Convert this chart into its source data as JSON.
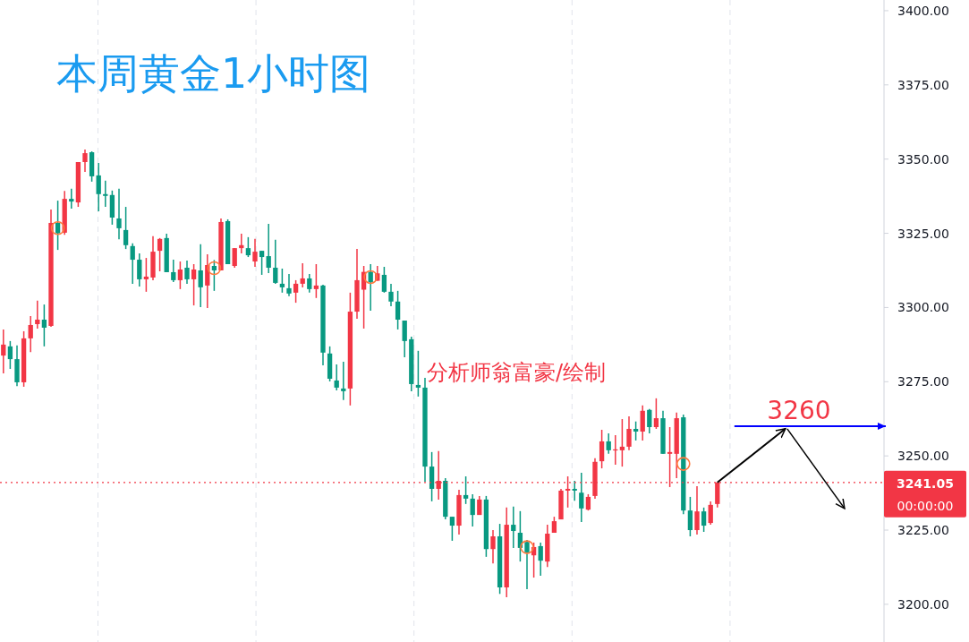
{
  "chart_data": {
    "type": "candlestick",
    "title": "本周黄金1小时图",
    "annotations": [
      "分析师翁富豪/绘制",
      "00:00:00"
    ],
    "categories": [
      null,
      null,
      null,
      null,
      null,
      null,
      null,
      null,
      null,
      null,
      null,
      null,
      null,
      null,
      null,
      null,
      null,
      null,
      null,
      null,
      null,
      null,
      null,
      null,
      null,
      null,
      null,
      null,
      null,
      null,
      null,
      null,
      null,
      null,
      null,
      null,
      null,
      null,
      null,
      null,
      null,
      null,
      null,
      null,
      null,
      null,
      null,
      null,
      null,
      null,
      null,
      null,
      null,
      null,
      null,
      null,
      null,
      null,
      null,
      null,
      null,
      null,
      null,
      null,
      null,
      null,
      null,
      null,
      null,
      null,
      null,
      null,
      null,
      null,
      null,
      null,
      null,
      null,
      null,
      null,
      null,
      null,
      null,
      null,
      null,
      null,
      null,
      null,
      null,
      null,
      null,
      null,
      null,
      null,
      null,
      null,
      null,
      null,
      null,
      null,
      null,
      null,
      null,
      null,
      null,
      null,
      null,
      null,
      null,
      null,
      null,
      null,
      null,
      null,
      null,
      null,
      null,
      null,
      null,
      null,
      null,
      null,
      null,
      null,
      null,
      null,
      null,
      null,
      null,
      null
    ],
    "ohlc": [
      [
        3283.8,
        3292.6,
        3277.8,
        3287.5
      ],
      [
        3286.9,
        3288.7,
        3279.3,
        3282.6
      ],
      [
        3282.6,
        3287.2,
        3273.5,
        3274.8
      ],
      [
        3274.8,
        3292.0,
        3273.3,
        3289.6
      ],
      [
        3289.6,
        3297.1,
        3285.0,
        3294.1
      ],
      [
        3294.4,
        3302.3,
        3292.9,
        3295.9
      ],
      [
        3295.9,
        3301.0,
        3286.9,
        3293.2
      ],
      [
        3293.8,
        3333.0,
        3293.5,
        3328.5
      ],
      [
        3328.5,
        3336.0,
        3319.4,
        3325.0
      ],
      [
        3325.2,
        3339.3,
        3324.5,
        3336.6
      ],
      [
        3336.6,
        3340.0,
        3333.3,
        3335.7
      ],
      [
        3335.4,
        3349.0,
        3333.9,
        3349.0
      ],
      [
        3349.0,
        3353.2,
        3345.7,
        3352.0
      ],
      [
        3352.3,
        3352.6,
        3342.4,
        3344.2
      ],
      [
        3344.5,
        3348.7,
        3332.4,
        3338.2
      ],
      [
        3338.2,
        3342.7,
        3333.9,
        3337.6
      ],
      [
        3337.9,
        3339.4,
        3327.9,
        3330.3
      ],
      [
        3330.0,
        3340.0,
        3323.0,
        3326.7
      ],
      [
        3326.1,
        3333.9,
        3319.7,
        3321.0
      ],
      [
        3320.7,
        3321.6,
        3308.0,
        3316.1
      ],
      [
        3316.1,
        3318.2,
        3307.1,
        3309.5
      ],
      [
        3309.5,
        3316.7,
        3305.3,
        3310.4
      ],
      [
        3310.1,
        3324.0,
        3309.2,
        3318.8
      ],
      [
        3319.1,
        3323.4,
        3312.2,
        3323.1
      ],
      [
        3323.4,
        3324.9,
        3311.9,
        3311.9
      ],
      [
        3311.9,
        3316.1,
        3308.6,
        3309.2
      ],
      [
        3309.2,
        3315.5,
        3306.2,
        3312.8
      ],
      [
        3313.4,
        3315.8,
        3308.0,
        3309.5
      ],
      [
        3309.5,
        3314.6,
        3300.7,
        3312.8
      ],
      [
        3312.5,
        3321.3,
        3300.1,
        3306.8
      ],
      [
        3307.4,
        3317.9,
        3299.8,
        3314.3
      ],
      [
        3314.0,
        3316.0,
        3305.6,
        3312.5
      ],
      [
        3312.5,
        3330.0,
        3312.5,
        3328.8
      ],
      [
        3329.1,
        3329.7,
        3314.6,
        3314.6
      ],
      [
        3314.0,
        3320.0,
        3313.4,
        3320.0
      ],
      [
        3320.0,
        3324.9,
        3318.2,
        3321.0
      ],
      [
        3320.0,
        3323.7,
        3317.0,
        3317.6
      ],
      [
        3315.5,
        3323.1,
        3313.7,
        3318.8
      ],
      [
        3319.1,
        3319.1,
        3311.0,
        3317.0
      ],
      [
        3317.3,
        3328.2,
        3311.6,
        3313.4
      ],
      [
        3313.4,
        3322.8,
        3308.0,
        3308.3
      ],
      [
        3308.0,
        3313.1,
        3305.0,
        3306.8
      ],
      [
        3306.5,
        3311.3,
        3303.8,
        3304.7
      ],
      [
        3305.0,
        3309.2,
        3301.6,
        3308.0
      ],
      [
        3308.0,
        3314.9,
        3306.8,
        3309.8
      ],
      [
        3309.8,
        3311.3,
        3305.0,
        3306.2
      ],
      [
        3306.2,
        3314.6,
        3303.2,
        3307.4
      ],
      [
        3307.4,
        3307.7,
        3280.5,
        3284.8
      ],
      [
        3284.5,
        3286.9,
        3275.1,
        3276.0
      ],
      [
        3275.4,
        3280.8,
        3272.1,
        3273.0
      ],
      [
        3272.7,
        3281.7,
        3268.8,
        3271.8
      ],
      [
        3272.7,
        3305.0,
        3267.0,
        3298.6
      ],
      [
        3298.6,
        3319.7,
        3296.2,
        3309.2
      ],
      [
        3306.0,
        3314.0,
        3292.9,
        3312.0
      ],
      [
        3312.0,
        3314.6,
        3298.9,
        3308.5
      ],
      [
        3309.0,
        3314.0,
        3309.0,
        3311.5
      ],
      [
        3311.0,
        3313.7,
        3305.0,
        3305.3
      ],
      [
        3305.3,
        3308.0,
        3300.4,
        3302.0
      ],
      [
        3302.0,
        3305.6,
        3292.6,
        3295.9
      ],
      [
        3295.6,
        3295.6,
        3283.2,
        3288.7
      ],
      [
        3289.3,
        3290.2,
        3271.8,
        3274.2
      ],
      [
        3273.9,
        3285.4,
        3270.0,
        3273.0
      ],
      [
        3273.0,
        3276.3,
        3241.3,
        3246.4
      ],
      [
        3246.4,
        3251.3,
        3234.7,
        3238.9
      ],
      [
        3238.9,
        3251.6,
        3235.3,
        3241.6
      ],
      [
        3241.6,
        3242.5,
        3228.6,
        3229.5
      ],
      [
        3229.5,
        3229.5,
        3221.4,
        3226.5
      ],
      [
        3226.5,
        3238.6,
        3223.5,
        3236.8
      ],
      [
        3236.8,
        3243.1,
        3233.8,
        3235.6
      ],
      [
        3235.6,
        3237.1,
        3226.2,
        3230.1
      ],
      [
        3230.1,
        3236.5,
        3230.1,
        3235.3
      ],
      [
        3235.3,
        3236.5,
        3216.0,
        3218.6
      ],
      [
        3218.6,
        3225.0,
        3213.8,
        3222.9
      ],
      [
        3222.9,
        3227.1,
        3203.5,
        3205.7
      ],
      [
        3205.7,
        3232.6,
        3202.4,
        3226.8
      ],
      [
        3226.8,
        3232.9,
        3219.0,
        3224.7
      ],
      [
        3224.1,
        3231.4,
        3214.4,
        3219.0
      ],
      [
        3221.0,
        3221.7,
        3205.1,
        3217.5
      ],
      [
        3216.5,
        3220.8,
        3209.0,
        3219.3
      ],
      [
        3219.6,
        3220.8,
        3209.6,
        3214.7
      ],
      [
        3214.4,
        3226.8,
        3212.6,
        3223.8
      ],
      [
        3224.1,
        3229.5,
        3224.1,
        3228.0
      ],
      [
        3228.6,
        3238.9,
        3228.6,
        3238.3
      ],
      [
        3238.3,
        3243.1,
        3232.6,
        3238.9
      ],
      [
        3238.9,
        3241.6,
        3234.9,
        3238.3
      ],
      [
        3237.6,
        3244.3,
        3227.7,
        3232.3
      ],
      [
        3231.9,
        3237.1,
        3231.6,
        3236.2
      ],
      [
        3236.5,
        3249.2,
        3235.6,
        3248.0
      ],
      [
        3248.2,
        3258.8,
        3245.8,
        3254.9
      ],
      [
        3254.9,
        3257.6,
        3250.7,
        3251.9
      ],
      [
        3251.9,
        3257.0,
        3247.0,
        3252.2
      ],
      [
        3251.9,
        3262.4,
        3246.4,
        3253.1
      ],
      [
        3253.1,
        3263.3,
        3251.9,
        3259.1
      ],
      [
        3259.1,
        3261.6,
        3255.2,
        3258.2
      ],
      [
        3258.2,
        3267.0,
        3255.2,
        3265.2
      ],
      [
        3265.5,
        3265.8,
        3257.6,
        3259.7
      ],
      [
        3259.7,
        3269.4,
        3259.1,
        3262.7
      ],
      [
        3262.7,
        3265.2,
        3250.7,
        3250.7
      ],
      [
        3250.7,
        3259.7,
        3239.5,
        3251.3
      ],
      [
        3250.7,
        3264.6,
        3242.5,
        3262.7
      ],
      [
        3263.0,
        3263.9,
        3230.4,
        3231.6
      ],
      [
        3231.6,
        3236.2,
        3222.9,
        3225.0
      ],
      [
        3225.0,
        3239.8,
        3223.5,
        3231.3
      ],
      [
        3231.3,
        3232.6,
        3224.4,
        3226.5
      ],
      [
        3227.4,
        3234.7,
        3226.8,
        3233.5
      ],
      [
        3233.8,
        3241.05,
        3232.6,
        3241.05
      ],
      null,
      null,
      null,
      null,
      null,
      null,
      null,
      null,
      null,
      null,
      null,
      null,
      null,
      null,
      null,
      null,
      null,
      null,
      null,
      null,
      null,
      null,
      null,
      null
    ],
    "colors": [
      "#f23645",
      "#089981",
      "#089981",
      "#f23645",
      "#f23645",
      "#f23645",
      "#089981",
      "#f23645",
      "#089981",
      "#f23645",
      "#089981",
      "#f23645",
      "#f23645",
      "#089981",
      "#089981",
      "#089981",
      "#089981",
      "#089981",
      "#089981",
      "#089981",
      "#089981",
      "#f23645",
      "#f23645",
      "#f23645",
      "#089981",
      "#089981",
      "#f23645",
      "#089981",
      "#f23645",
      "#089981",
      "#f23645",
      "#089981",
      "#f23645",
      "#089981",
      "#f23645",
      "#f23645",
      "#089981",
      "#f23645",
      "#089981",
      "#089981",
      "#089981",
      "#089981",
      "#089981",
      "#f23645",
      "#f23645",
      "#089981",
      "#f23645",
      "#089981",
      "#089981",
      "#089981",
      "#089981",
      "#f23645",
      "#f23645",
      "#f23645",
      "#089981",
      "#f23645",
      "#089981",
      "#089981",
      "#089981",
      "#089981",
      "#089981",
      "#089981",
      "#089981",
      "#089981",
      "#f23645",
      "#089981",
      "#089981",
      "#f23645",
      "#089981",
      "#089981",
      "#f23645",
      "#089981",
      "#f23645",
      "#089981",
      "#f23645",
      "#089981",
      "#089981",
      "#089981",
      "#f23645",
      "#089981",
      "#f23645",
      "#f23645",
      "#f23645",
      "#f23645",
      "#089981",
      "#089981",
      "#f23645",
      "#f23645",
      "#f23645",
      "#089981",
      "#f23645",
      "#f23645",
      "#f23645",
      "#089981",
      "#f23645",
      "#089981",
      "#f23645",
      "#089981",
      "#f23645",
      "#f23645",
      "#089981",
      "#089981",
      "#f23645",
      "#089981",
      "#f23645",
      "#f23645",
      null,
      null,
      null,
      null,
      null,
      null,
      null,
      null,
      null,
      null,
      null,
      null,
      null,
      null,
      null,
      null,
      null,
      null,
      null,
      null,
      null,
      null,
      null,
      null
    ],
    "ylim": [
      3187.3,
      3403.6
    ],
    "yticks": [
      {
        "value": 3200,
        "label": "3200.00"
      },
      {
        "value": 3225,
        "label": "3225.00"
      },
      {
        "value": 3250,
        "label": "3250.00"
      },
      {
        "value": 3275,
        "label": "3275.00"
      },
      {
        "value": 3300,
        "label": "3300.00"
      },
      {
        "value": 3325,
        "label": "3325.00"
      },
      {
        "value": 3350,
        "label": "3350.00"
      },
      {
        "value": 3375,
        "label": "3375.00"
      },
      {
        "value": 3400,
        "label": "3400.00"
      }
    ],
    "ref_lines": [
      {
        "axis": "y",
        "value": 3241.05,
        "label": "3241.05",
        "color": "#f23645",
        "line_style": "dotted"
      },
      {
        "axis": "y",
        "value": 3260,
        "label": "3260",
        "color": "#0000ff",
        "line_style": "solid"
      }
    ],
    "grid": "x",
    "tick_labels": "y"
  }
}
